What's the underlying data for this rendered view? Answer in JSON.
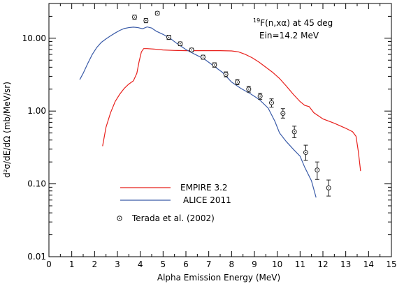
{
  "chart_data": {
    "type": "line",
    "xlabel": "Alpha Emission Energy (MeV)",
    "ylabel": "d²σ/dE/dΩ (mb/MeV/sr)",
    "xlim": [
      0,
      15
    ],
    "ylim": [
      0.01,
      30
    ],
    "yscale": "log",
    "x_ticks": [
      0,
      1,
      2,
      3,
      4,
      5,
      6,
      7,
      8,
      9,
      10,
      11,
      12,
      13,
      14,
      15
    ],
    "x_tick_labels": [
      "0",
      "1",
      "2",
      "3",
      "4",
      "5",
      "6",
      "7",
      "8",
      "9",
      "10",
      "11",
      "12",
      "13",
      "14",
      "15"
    ],
    "y_ticks": [
      0.01,
      0.1,
      1,
      10
    ],
    "y_tick_labels": [
      "0.01",
      "0.10",
      "1.00",
      "10.00"
    ],
    "annotation": {
      "reaction_mass": "19",
      "reaction_rest": "F(n,xα) at 45 deg",
      "energy": "Ein=14.2 MeV"
    },
    "legend_placement": "bottom-left",
    "series": [
      {
        "name": "EMPIRE 3.2",
        "kind": "line",
        "color": "#e8201c",
        "x": [
          2.35,
          2.5,
          2.7,
          2.9,
          3.1,
          3.3,
          3.5,
          3.7,
          3.85,
          3.95,
          4.05,
          4.15,
          4.3,
          4.6,
          5.0,
          5.5,
          6.0,
          6.5,
          7.0,
          7.5,
          8.0,
          8.3,
          8.6,
          8.9,
          9.2,
          9.5,
          9.8,
          10.1,
          10.4,
          10.7,
          11.0,
          11.2,
          11.4,
          11.6,
          12.0,
          12.5,
          13.0,
          13.3,
          13.45,
          13.55,
          13.65
        ],
        "y": [
          0.33,
          0.6,
          0.95,
          1.35,
          1.7,
          2.05,
          2.35,
          2.6,
          3.3,
          4.8,
          6.5,
          7.2,
          7.2,
          7.1,
          6.9,
          6.8,
          6.75,
          6.75,
          6.75,
          6.75,
          6.7,
          6.5,
          6.0,
          5.4,
          4.7,
          4.0,
          3.4,
          2.8,
          2.2,
          1.7,
          1.35,
          1.2,
          1.15,
          0.95,
          0.78,
          0.68,
          0.58,
          0.52,
          0.45,
          0.28,
          0.15
        ]
      },
      {
        "name": "ALICE 2011",
        "kind": "line",
        "color": "#3a5ba8",
        "x": [
          1.35,
          1.5,
          1.7,
          1.9,
          2.1,
          2.3,
          2.5,
          2.7,
          2.9,
          3.1,
          3.3,
          3.5,
          3.7,
          3.9,
          4.1,
          4.3,
          4.5,
          4.7,
          5.0,
          5.3,
          5.6,
          6.0,
          6.4,
          6.8,
          7.2,
          7.6,
          8.0,
          8.4,
          8.8,
          9.2,
          9.6,
          9.9,
          10.1,
          10.4,
          10.7,
          11.0,
          11.2,
          11.5,
          11.7
        ],
        "y": [
          2.7,
          3.3,
          4.5,
          6.0,
          7.5,
          8.8,
          9.8,
          10.8,
          11.8,
          12.8,
          13.6,
          14.0,
          14.2,
          14.0,
          13.5,
          14.3,
          13.8,
          12.5,
          11.3,
          10.0,
          8.5,
          7.0,
          6.0,
          5.2,
          4.2,
          3.4,
          2.5,
          2.05,
          1.75,
          1.45,
          1.1,
          0.72,
          0.5,
          0.38,
          0.3,
          0.24,
          0.17,
          0.11,
          0.065
        ]
      },
      {
        "name": "Terada et al. (2002)",
        "kind": "points",
        "color": "#222222",
        "x": [
          3.75,
          4.25,
          4.75,
          5.25,
          5.75,
          6.25,
          6.75,
          7.25,
          7.75,
          8.25,
          8.75,
          9.25,
          9.75,
          10.25,
          10.75,
          11.25,
          11.75,
          12.25
        ],
        "y": [
          19.5,
          17.5,
          22.0,
          10.3,
          8.4,
          6.9,
          5.5,
          4.3,
          3.2,
          2.5,
          2.0,
          1.6,
          1.3,
          0.93,
          0.52,
          0.27,
          0.155,
          0.088
        ],
        "err_lo": [
          18.2,
          16.3,
          20.8,
          9.6,
          7.9,
          6.5,
          5.15,
          4.0,
          2.95,
          2.3,
          1.82,
          1.45,
          1.13,
          0.8,
          0.43,
          0.21,
          0.115,
          0.068
        ],
        "err_hi": [
          20.8,
          18.7,
          23.2,
          11.0,
          8.9,
          7.3,
          5.85,
          4.6,
          3.45,
          2.7,
          2.18,
          1.75,
          1.47,
          1.08,
          0.62,
          0.34,
          0.2,
          0.113
        ]
      }
    ]
  }
}
